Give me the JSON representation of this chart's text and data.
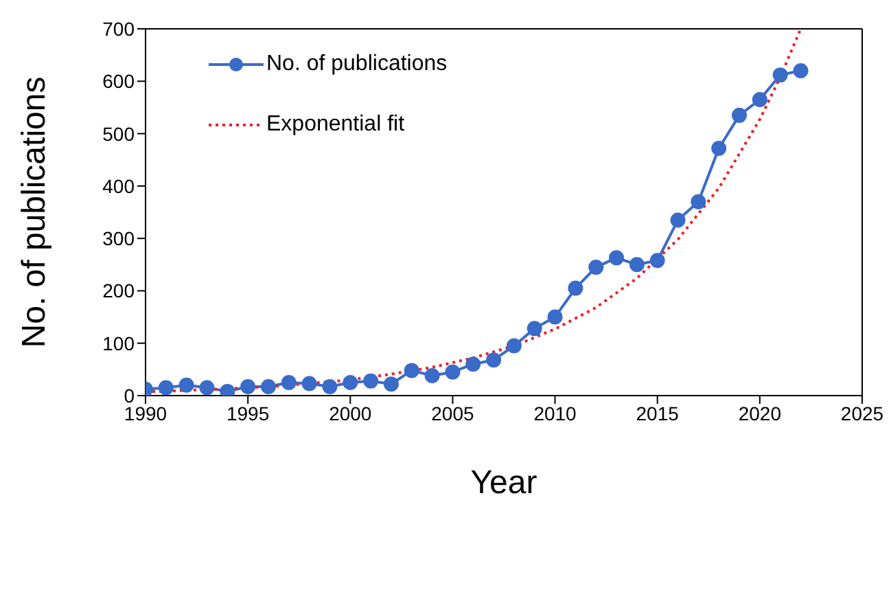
{
  "chart_data": {
    "type": "line",
    "xlabel": "Year",
    "ylabel": "No. of publications",
    "xlim": [
      1990,
      2025
    ],
    "xticks": [
      1990,
      1995,
      2000,
      2005,
      2010,
      2015,
      2020,
      2025
    ],
    "ylim": [
      0,
      700
    ],
    "yticks": [
      0,
      100,
      200,
      300,
      400,
      500,
      600,
      700
    ],
    "legend": "top left",
    "series": [
      {
        "name": "No. of publications",
        "color": "#3a6bc8",
        "marker": "circle",
        "line_style": "solid",
        "x": [
          1990,
          1991,
          1992,
          1993,
          1994,
          1995,
          1996,
          1997,
          1998,
          1999,
          2000,
          2001,
          2002,
          2003,
          2004,
          2005,
          2006,
          2007,
          2008,
          2009,
          2010,
          2011,
          2012,
          2013,
          2014,
          2015,
          2016,
          2017,
          2018,
          2019,
          2020,
          2021,
          2022
        ],
        "values": [
          12,
          15,
          20,
          15,
          8,
          17,
          17,
          25,
          23,
          17,
          25,
          28,
          22,
          48,
          38,
          45,
          60,
          68,
          95,
          128,
          150,
          205,
          245,
          263,
          250,
          258,
          335,
          370,
          472,
          535,
          565,
          612,
          620
        ]
      },
      {
        "name": "Exponential fit",
        "color": "#e8242a",
        "marker": "none",
        "line_style": "dotted",
        "x": [
          1990,
          1992,
          1994,
          1996,
          1998,
          2000,
          2002,
          2004,
          2006,
          2008,
          2010,
          2012,
          2014,
          2016,
          2018,
          2020,
          2021,
          2022
        ],
        "values": [
          7,
          10,
          13,
          17,
          23,
          30,
          41,
          54,
          72,
          95,
          127,
          168,
          224,
          298,
          396,
          527,
          608,
          700
        ]
      }
    ]
  }
}
